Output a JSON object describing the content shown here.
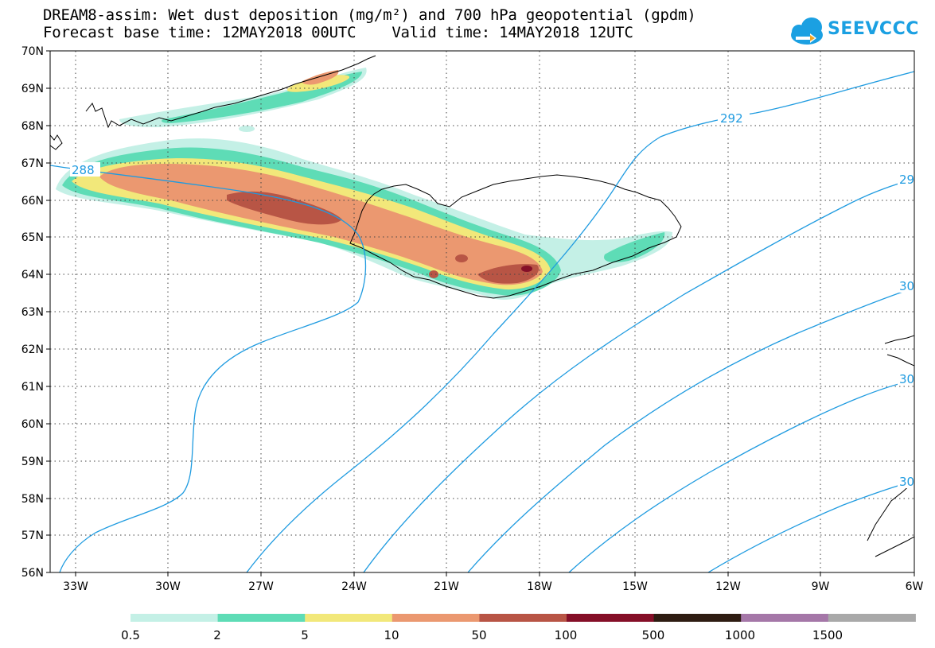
{
  "title": {
    "line1": "DREAM8-assim: Wet dust deposition (mg/m²) and 700 hPa geopotential (gpdm)",
    "line2": "Forecast base time: 12MAY2018 00UTC    Valid time: 14MAY2018 12UTC"
  },
  "logo": {
    "text": "SEEVCCC",
    "color": "#1ba0e2",
    "icon": "cloud-icon"
  },
  "axes": {
    "lat_labels": [
      "70N",
      "69N",
      "68N",
      "67N",
      "66N",
      "65N",
      "64N",
      "63N",
      "62N",
      "61N",
      "60N",
      "59N",
      "58N",
      "57N",
      "56N"
    ],
    "lon_labels": [
      "33W",
      "30W",
      "27W",
      "24W",
      "21W",
      "18W",
      "15W",
      "12W",
      "9W",
      "6W"
    ],
    "lon_range": [
      -34.2,
      -6
    ],
    "lat_range": [
      56,
      70
    ],
    "grid": "dotted"
  },
  "contour_labels": [
    "288",
    "292",
    "29",
    "30",
    "30",
    "30"
  ],
  "contour_color": "#1f9be0",
  "legend": {
    "labels": [
      "0.5",
      "2",
      "5",
      "10",
      "50",
      "100",
      "500",
      "1000",
      "1500"
    ],
    "colors": [
      "#c4f0e6",
      "#5edcb6",
      "#f2e87a",
      "#eb9870",
      "#b85545",
      "#850f28",
      "#2e1c12",
      "#a577a8",
      "#a9a9a9"
    ]
  }
}
